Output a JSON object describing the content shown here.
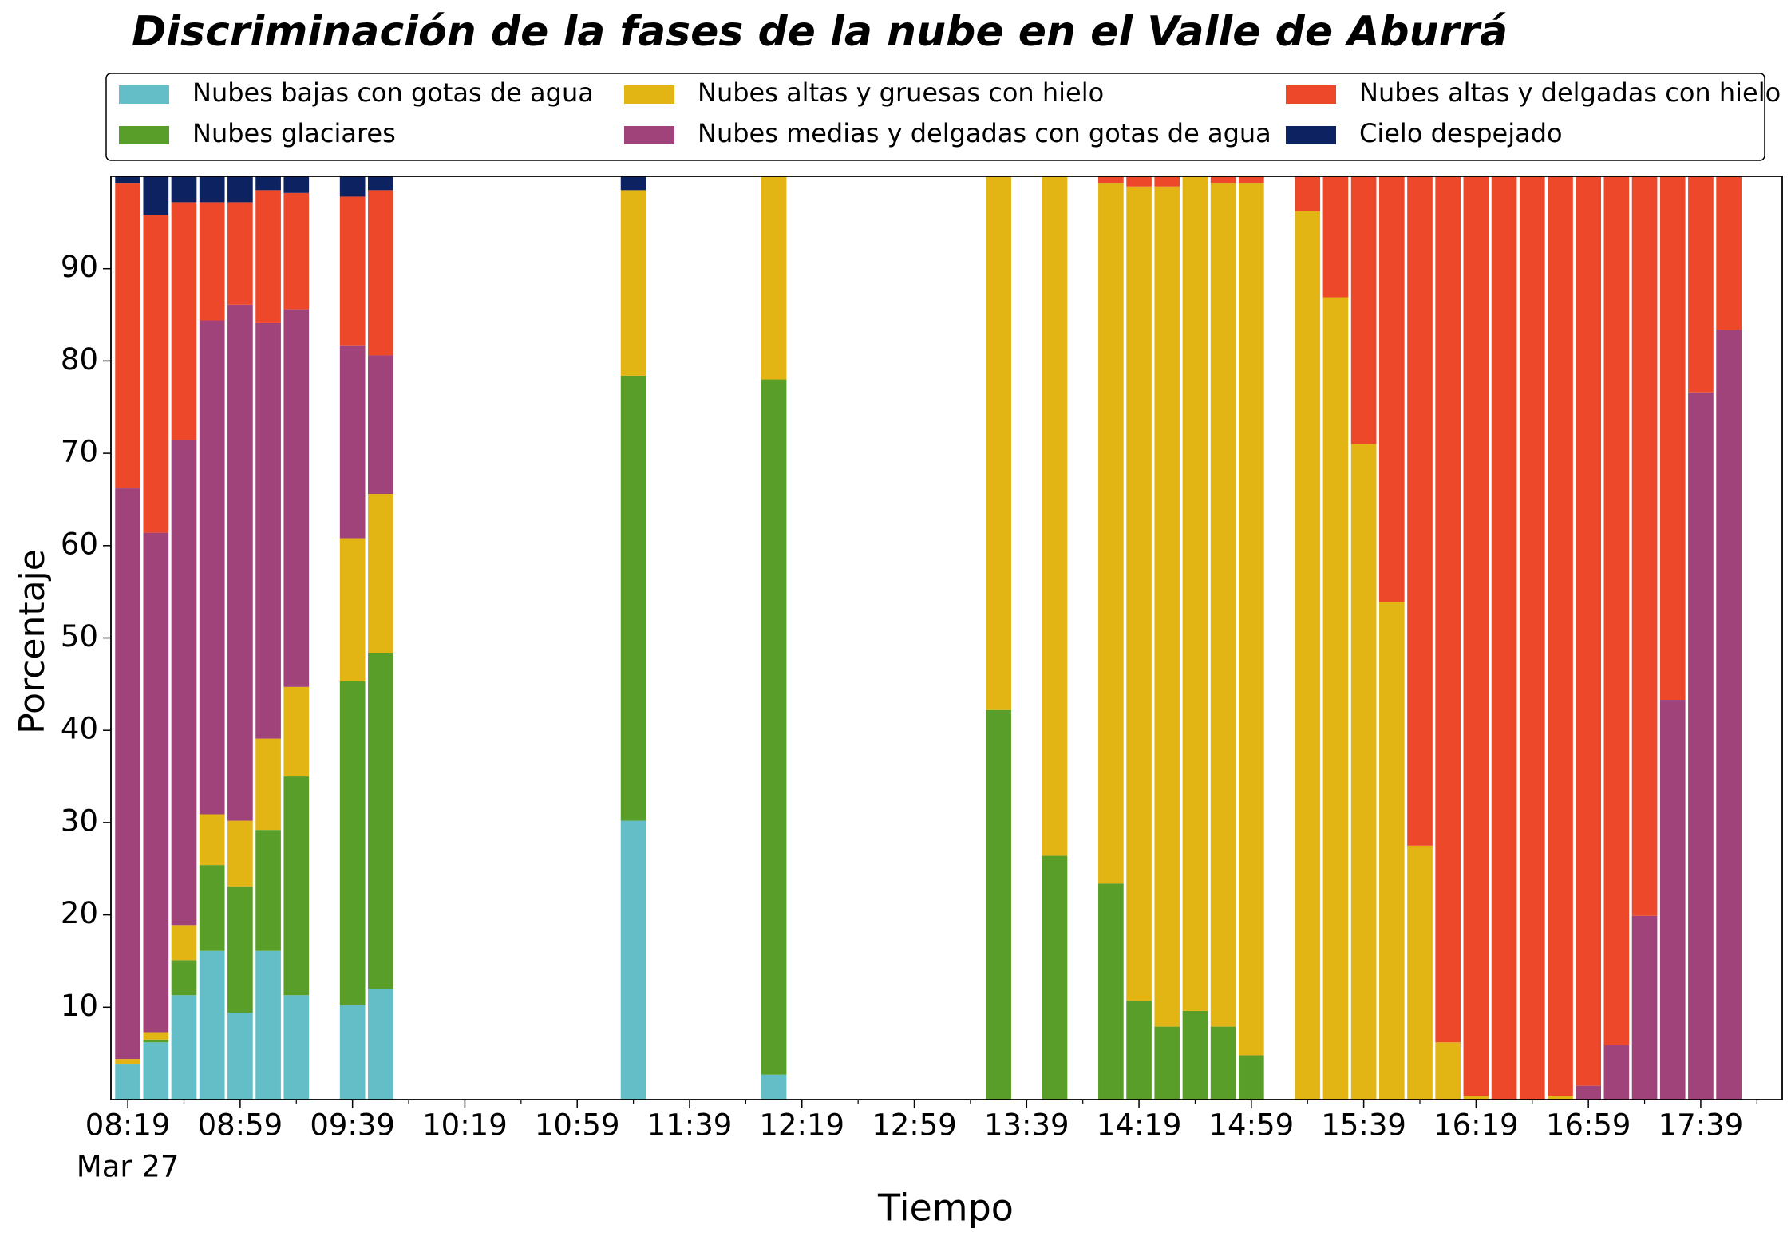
{
  "chart_data": {
    "type": "stacked_bar",
    "title": "Discriminación de la fases de la nube en el Valle de Aburrá",
    "xlabel": "Tiempo",
    "ylabel": "Porcentaje",
    "date_label": "Mar 27",
    "x": [
      "08:19",
      "08:29",
      "08:39",
      "08:49",
      "08:59",
      "09:09",
      "09:19",
      "09:39",
      "09:49",
      "11:19",
      "12:09",
      "13:29",
      "13:49",
      "14:09",
      "14:19",
      "14:29",
      "14:39",
      "14:49",
      "14:59",
      "15:19",
      "15:29",
      "15:39",
      "15:49",
      "15:59",
      "16:09",
      "16:19",
      "16:29",
      "16:39",
      "16:49",
      "16:59",
      "17:09",
      "17:19",
      "17:29",
      "17:39",
      "17:49"
    ],
    "series": [
      {
        "name": "Nubes bajas con gotas de agua",
        "color": "#64bec8",
        "values": [
          3.8,
          6.2,
          11.3,
          16.1,
          9.4,
          16.1,
          11.3,
          10.2,
          12.0,
          30.2,
          2.7,
          0,
          0,
          0,
          0,
          0,
          0,
          0,
          0,
          0,
          0,
          0,
          0,
          0,
          0,
          0,
          0,
          0,
          0,
          0,
          0,
          0,
          0,
          0,
          0
        ]
      },
      {
        "name": "Nubes glaciares",
        "color": "#5a9e2a",
        "values": [
          0,
          0.3,
          3.8,
          9.3,
          13.7,
          13.1,
          23.7,
          35.1,
          36.4,
          48.2,
          75.3,
          42.2,
          26.4,
          23.4,
          10.7,
          7.9,
          9.6,
          7.9,
          4.8,
          0,
          0,
          0,
          0,
          0,
          0,
          0,
          0,
          0,
          0,
          0,
          0,
          0,
          0,
          0,
          0
        ]
      },
      {
        "name": "Nubes altas y gruesas con hielo",
        "color": "#e3b514",
        "values": [
          0.6,
          0.8,
          3.8,
          5.5,
          7.1,
          9.9,
          9.7,
          15.5,
          17.2,
          20.1,
          22.0,
          57.8,
          73.6,
          75.9,
          88.2,
          91.0,
          90.4,
          91.4,
          94.5,
          96.2,
          86.9,
          71.0,
          53.9,
          27.5,
          6.2,
          0.4,
          0,
          0,
          0.4,
          0,
          0,
          0,
          0,
          0,
          0
        ]
      },
      {
        "name": "Nubes medias y delgadas con gotas de agua",
        "color": "#a0437a",
        "values": [
          61.8,
          54.1,
          52.5,
          53.5,
          55.9,
          45.0,
          40.9,
          20.9,
          15.0,
          0,
          0,
          0,
          0,
          0,
          0,
          0,
          0,
          0,
          0,
          0,
          0,
          0,
          0,
          0,
          0,
          0,
          0,
          0,
          0,
          1.5,
          5.9,
          19.9,
          43.3,
          76.6,
          83.4
        ]
      },
      {
        "name": "Nubes altas y delgadas con hielo",
        "color": "#ee482a",
        "values": [
          33.1,
          34.4,
          25.8,
          12.8,
          11.1,
          14.4,
          12.6,
          16.1,
          17.9,
          0,
          0,
          0,
          0,
          0.7,
          1.1,
          1.1,
          0,
          0.7,
          0.7,
          3.8,
          13.1,
          29.0,
          46.1,
          72.5,
          93.8,
          99.6,
          100,
          100,
          99.6,
          98.5,
          94.1,
          80.1,
          56.7,
          23.4,
          16.6
        ]
      },
      {
        "name": "Cielo despejado",
        "color": "#0d2260",
        "values": [
          0.7,
          4.2,
          2.8,
          2.8,
          2.8,
          1.5,
          1.8,
          2.2,
          1.5,
          1.5,
          0,
          0,
          0,
          0,
          0,
          0,
          0,
          0,
          0,
          0,
          0,
          0,
          0,
          0,
          0,
          0,
          0,
          0,
          0,
          0,
          0,
          0,
          0,
          0,
          0
        ]
      }
    ],
    "xlim": [
      "08:13",
      "18:08"
    ],
    "xticks": [
      "08:19",
      "08:59",
      "09:39",
      "10:19",
      "10:59",
      "11:39",
      "12:19",
      "12:59",
      "13:39",
      "14:19",
      "14:59",
      "15:39",
      "16:19",
      "16:59",
      "17:39"
    ],
    "xminorticks": [
      "08:39",
      "09:19",
      "09:59",
      "10:39",
      "11:19",
      "11:59",
      "12:39",
      "13:19",
      "13:59",
      "14:39",
      "15:19",
      "15:59",
      "16:39",
      "17:19",
      "17:59"
    ],
    "ylim": [
      0,
      100
    ],
    "yticks": [
      10,
      20,
      30,
      40,
      50,
      60,
      70,
      80,
      90
    ],
    "grid": false,
    "legend": "upper center",
    "legend_ncol": 3
  }
}
